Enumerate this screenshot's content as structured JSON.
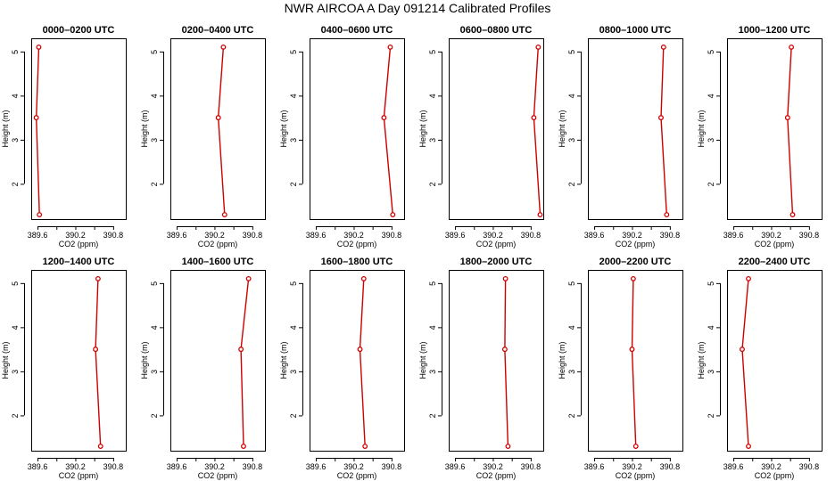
{
  "figure": {
    "title": "NWR AIRCOA A  Day 091214  Calibrated Profiles",
    "xlabel": "CO2 (ppm)",
    "ylabel": "Height (m)"
  },
  "colors": {
    "series": "#d00000",
    "axis": "#000000",
    "background": "#ffffff"
  },
  "chart_data": [
    {
      "type": "line",
      "title": "0000–0200 UTC",
      "xlabel": "CO2 (ppm)",
      "ylabel": "Height (m)",
      "xlim": [
        389.5,
        391.0
      ],
      "ylim": [
        1.2,
        5.3
      ],
      "xticks": [
        389.6,
        390.2,
        390.8
      ],
      "yticks": [
        2,
        3,
        4,
        5
      ],
      "series": [
        {
          "name": "profile",
          "points": [
            {
              "x": 389.63,
              "y": 1.3
            },
            {
              "x": 389.58,
              "y": 3.5
            },
            {
              "x": 389.62,
              "y": 5.1
            }
          ]
        }
      ]
    },
    {
      "type": "line",
      "title": "0200–0400 UTC",
      "xlabel": "CO2 (ppm)",
      "ylabel": "Height (m)",
      "xlim": [
        389.5,
        391.0
      ],
      "ylim": [
        1.2,
        5.3
      ],
      "xticks": [
        389.6,
        390.2,
        390.8
      ],
      "yticks": [
        2,
        3,
        4,
        5
      ],
      "series": [
        {
          "name": "profile",
          "points": [
            {
              "x": 390.36,
              "y": 1.3
            },
            {
              "x": 390.26,
              "y": 3.5
            },
            {
              "x": 390.34,
              "y": 5.1
            }
          ]
        }
      ]
    },
    {
      "type": "line",
      "title": "0400–0600 UTC",
      "xlabel": "CO2 (ppm)",
      "ylabel": "Height (m)",
      "xlim": [
        389.5,
        391.0
      ],
      "ylim": [
        1.2,
        5.3
      ],
      "xticks": [
        389.6,
        390.2,
        390.8
      ],
      "yticks": [
        2,
        3,
        4,
        5
      ],
      "series": [
        {
          "name": "profile",
          "points": [
            {
              "x": 390.82,
              "y": 1.3
            },
            {
              "x": 390.68,
              "y": 3.5
            },
            {
              "x": 390.78,
              "y": 5.1
            }
          ]
        }
      ]
    },
    {
      "type": "line",
      "title": "0600–0800 UTC",
      "xlabel": "CO2 (ppm)",
      "ylabel": "Height (m)",
      "xlim": [
        389.5,
        391.0
      ],
      "ylim": [
        1.2,
        5.3
      ],
      "xticks": [
        389.6,
        390.2,
        390.8
      ],
      "yticks": [
        2,
        3,
        4,
        5
      ],
      "series": [
        {
          "name": "profile",
          "points": [
            {
              "x": 390.95,
              "y": 1.3
            },
            {
              "x": 390.85,
              "y": 3.5
            },
            {
              "x": 390.92,
              "y": 5.1
            }
          ]
        }
      ]
    },
    {
      "type": "line",
      "title": "0800–1000 UTC",
      "xlabel": "CO2 (ppm)",
      "ylabel": "Height (m)",
      "xlim": [
        389.5,
        391.0
      ],
      "ylim": [
        1.2,
        5.3
      ],
      "xticks": [
        389.6,
        390.2,
        390.8
      ],
      "yticks": [
        2,
        3,
        4,
        5
      ],
      "series": [
        {
          "name": "profile",
          "points": [
            {
              "x": 390.75,
              "y": 1.3
            },
            {
              "x": 390.66,
              "y": 3.5
            },
            {
              "x": 390.7,
              "y": 5.1
            }
          ]
        }
      ]
    },
    {
      "type": "line",
      "title": "1000–1200 UTC",
      "xlabel": "CO2 (ppm)",
      "ylabel": "Height (m)",
      "xlim": [
        389.5,
        391.0
      ],
      "ylim": [
        1.2,
        5.3
      ],
      "xticks": [
        389.6,
        390.2,
        390.8
      ],
      "yticks": [
        2,
        3,
        4,
        5
      ],
      "series": [
        {
          "name": "profile",
          "points": [
            {
              "x": 390.54,
              "y": 1.3
            },
            {
              "x": 390.46,
              "y": 3.5
            },
            {
              "x": 390.52,
              "y": 5.1
            }
          ]
        }
      ]
    },
    {
      "type": "line",
      "title": "1200–1400 UTC",
      "xlabel": "CO2 (ppm)",
      "ylabel": "Height (m)",
      "xlim": [
        389.5,
        391.0
      ],
      "ylim": [
        1.2,
        5.3
      ],
      "xticks": [
        389.6,
        390.2,
        390.8
      ],
      "yticks": [
        2,
        3,
        4,
        5
      ],
      "series": [
        {
          "name": "profile",
          "points": [
            {
              "x": 390.6,
              "y": 1.3
            },
            {
              "x": 390.52,
              "y": 3.5
            },
            {
              "x": 390.56,
              "y": 5.1
            }
          ]
        }
      ]
    },
    {
      "type": "line",
      "title": "1400–1600 UTC",
      "xlabel": "CO2 (ppm)",
      "ylabel": "Height (m)",
      "xlim": [
        389.5,
        391.0
      ],
      "ylim": [
        1.2,
        5.3
      ],
      "xticks": [
        389.6,
        390.2,
        390.8
      ],
      "yticks": [
        2,
        3,
        4,
        5
      ],
      "series": [
        {
          "name": "profile",
          "points": [
            {
              "x": 390.66,
              "y": 1.3
            },
            {
              "x": 390.62,
              "y": 3.5
            },
            {
              "x": 390.74,
              "y": 5.1
            }
          ]
        }
      ]
    },
    {
      "type": "line",
      "title": "1600–1800 UTC",
      "xlabel": "CO2 (ppm)",
      "ylabel": "Height (m)",
      "xlim": [
        389.5,
        391.0
      ],
      "ylim": [
        1.2,
        5.3
      ],
      "xticks": [
        389.6,
        390.2,
        390.8
      ],
      "yticks": [
        2,
        3,
        4,
        5
      ],
      "series": [
        {
          "name": "profile",
          "points": [
            {
              "x": 390.38,
              "y": 1.3
            },
            {
              "x": 390.3,
              "y": 3.5
            },
            {
              "x": 390.36,
              "y": 5.1
            }
          ]
        }
      ]
    },
    {
      "type": "line",
      "title": "1800–2000 UTC",
      "xlabel": "CO2 (ppm)",
      "ylabel": "Height (m)",
      "xlim": [
        389.5,
        391.0
      ],
      "ylim": [
        1.2,
        5.3
      ],
      "xticks": [
        389.6,
        390.2,
        390.8
      ],
      "yticks": [
        2,
        3,
        4,
        5
      ],
      "series": [
        {
          "name": "profile",
          "points": [
            {
              "x": 390.44,
              "y": 1.3
            },
            {
              "x": 390.39,
              "y": 3.5
            },
            {
              "x": 390.4,
              "y": 5.1
            }
          ]
        }
      ]
    },
    {
      "type": "line",
      "title": "2000–2200 UTC",
      "xlabel": "CO2 (ppm)",
      "ylabel": "Height (m)",
      "xlim": [
        389.5,
        391.0
      ],
      "ylim": [
        1.2,
        5.3
      ],
      "xticks": [
        389.6,
        390.2,
        390.8
      ],
      "yticks": [
        2,
        3,
        4,
        5
      ],
      "series": [
        {
          "name": "profile",
          "points": [
            {
              "x": 390.26,
              "y": 1.3
            },
            {
              "x": 390.2,
              "y": 3.5
            },
            {
              "x": 390.22,
              "y": 5.1
            }
          ]
        }
      ]
    },
    {
      "type": "line",
      "title": "2200–2400 UTC",
      "xlabel": "CO2 (ppm)",
      "ylabel": "Height (m)",
      "xlim": [
        389.5,
        391.0
      ],
      "ylim": [
        1.2,
        5.3
      ],
      "xticks": [
        389.6,
        390.2,
        390.8
      ],
      "yticks": [
        2,
        3,
        4,
        5
      ],
      "series": [
        {
          "name": "profile",
          "points": [
            {
              "x": 389.84,
              "y": 1.3
            },
            {
              "x": 389.74,
              "y": 3.5
            },
            {
              "x": 389.84,
              "y": 5.1
            }
          ]
        }
      ]
    }
  ]
}
